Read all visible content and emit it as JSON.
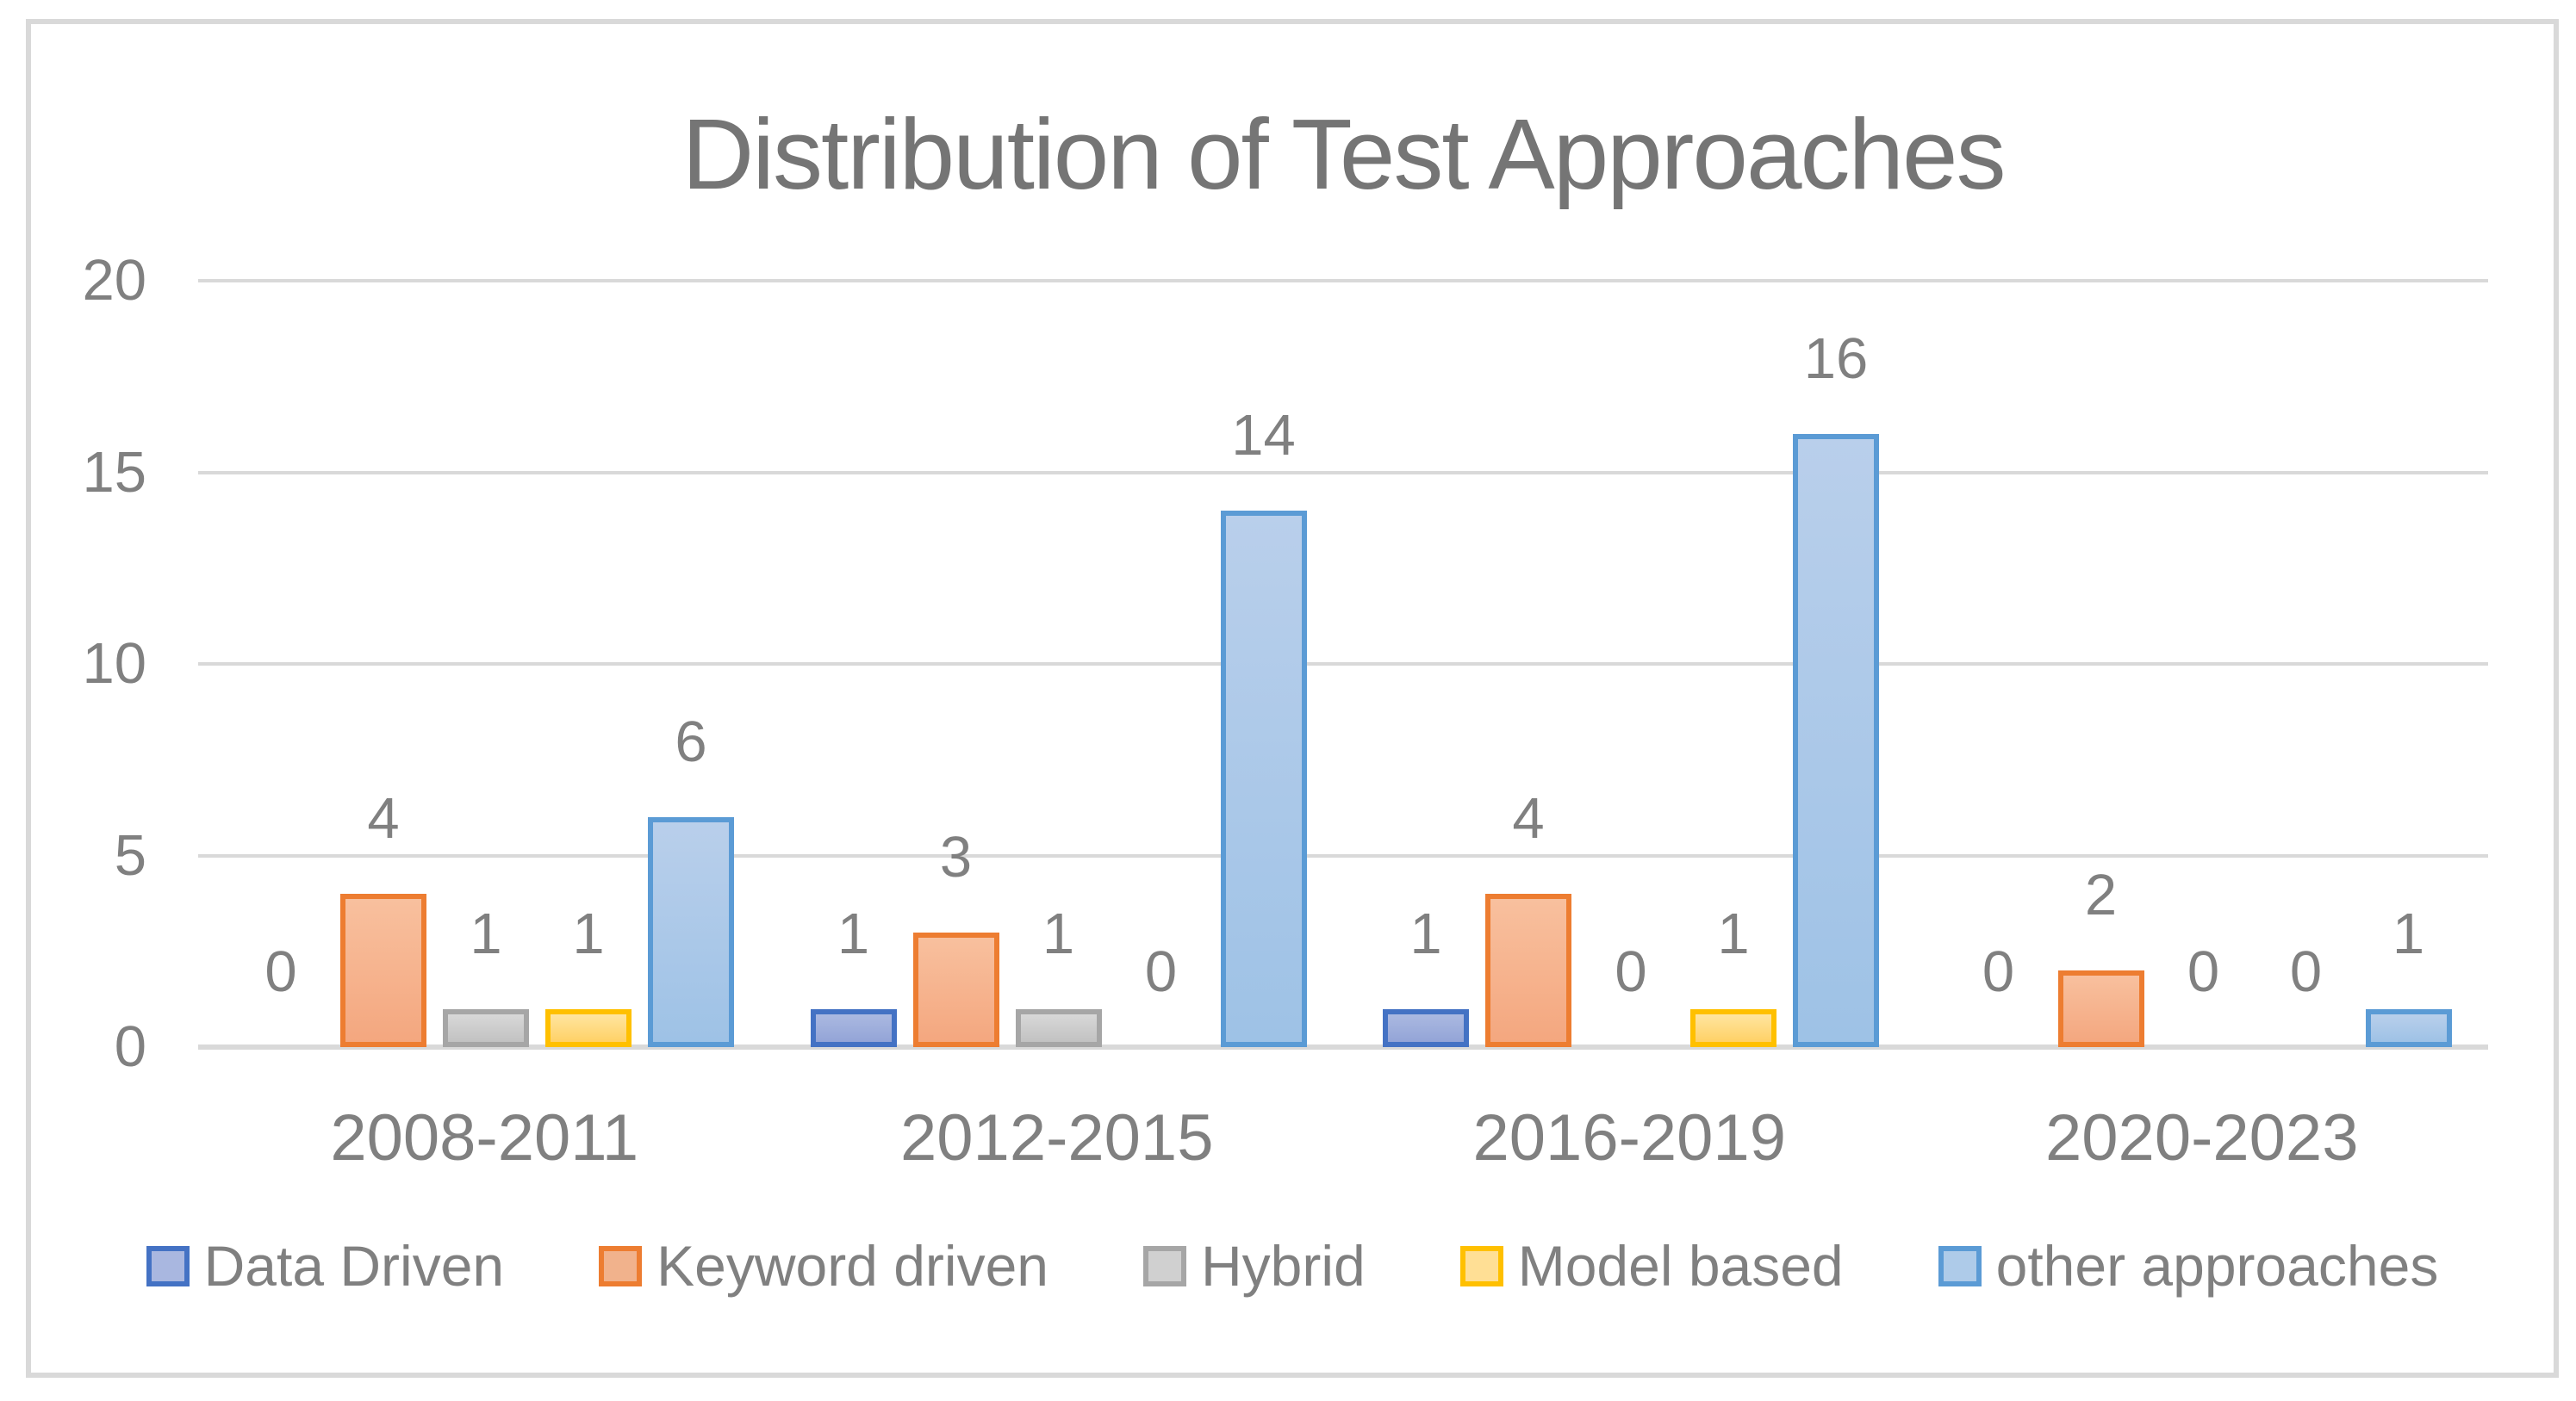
{
  "chart_data": {
    "type": "bar",
    "title": "Distribution of Test Approaches",
    "categories": [
      "2008-2011",
      "2012-2015",
      "2016-2019",
      "2020-2023"
    ],
    "series": [
      {
        "name": "Data Driven",
        "values": [
          0,
          1,
          1,
          0
        ],
        "border_color": "#4472C4",
        "fill_top": "#ABB9E1",
        "fill_bottom": "#93A4D7",
        "legend_fill": "#A9B7E0"
      },
      {
        "name": "Keyword driven",
        "values": [
          4,
          3,
          4,
          2
        ],
        "border_color": "#ED7D31",
        "fill_top": "#F8C09E",
        "fill_bottom": "#F4A77F",
        "legend_fill": "#F1B28C"
      },
      {
        "name": "Hybrid",
        "values": [
          1,
          1,
          0,
          0
        ],
        "border_color": "#A6A6A6",
        "fill_top": "#D8D8D8",
        "fill_bottom": "#C2C2C2",
        "legend_fill": "#D0D0D0"
      },
      {
        "name": "Model based",
        "values": [
          1,
          0,
          1,
          0
        ],
        "border_color": "#FFC000",
        "fill_top": "#FFE5A0",
        "fill_bottom": "#FFD166",
        "legend_fill": "#FFDF95"
      },
      {
        "name": "other approaches",
        "values": [
          6,
          14,
          16,
          1
        ],
        "border_color": "#5B9BD5",
        "fill_top": "#B9CFEB",
        "fill_bottom": "#9EC2E6",
        "legend_fill": "#AECBE9"
      }
    ],
    "y_axis": {
      "ticks": [
        0,
        5,
        10,
        15,
        20
      ],
      "min": 0,
      "max": 20
    },
    "grid": true,
    "legend_position": "bottom",
    "colors": {
      "title_text": "#757575",
      "label_text": "#808080",
      "gridline": "#D9D9D9",
      "frame_border": "#D9D9D9",
      "background": "#FFFFFF"
    }
  }
}
